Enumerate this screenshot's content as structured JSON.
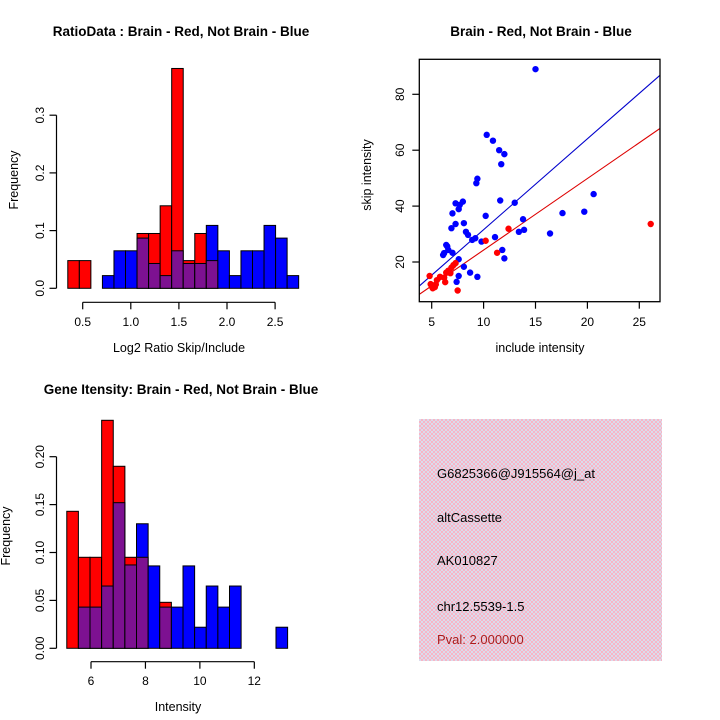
{
  "colors": {
    "brain_red": "#FF0000",
    "not_brain_blue": "#0000FF",
    "overlap_purple": "#7d1191",
    "axis_black": "#000000",
    "pval_text_red": "#a81e1e",
    "info_box_pink": "#f7b6c6",
    "info_box_pink_alt": "#dbdbec",
    "fit_line_blue": "#0000cc",
    "fit_line_red": "#dd0000"
  },
  "chart_data": [
    {
      "id": "ratio_histogram",
      "type": "bar",
      "title": "RatioData : Brain - Red, Not Brain - Blue",
      "xlabel": "Log2 Ratio Skip/Include",
      "ylabel": "Frequency",
      "x_ticks": [
        0.5,
        1.0,
        1.5,
        2.0,
        2.5
      ],
      "x_tick_labels": [
        "0.5",
        "1.0",
        "1.5",
        "2.0",
        "2.5"
      ],
      "y_ticks": [
        0.0,
        0.1,
        0.2,
        0.3
      ],
      "y_tick_labels": [
        "0.0",
        "0.1",
        "0.2",
        "0.3"
      ],
      "xlim": [
        0.34,
        2.75
      ],
      "ylim": [
        0,
        0.381
      ],
      "bin_width": 0.12,
      "series_names": [
        "Brain (red)",
        "Not Brain (blue)",
        "overlap (purple)"
      ],
      "bins": [
        {
          "start": 0.345,
          "red": 0.048,
          "blue": 0
        },
        {
          "start": 0.465,
          "red": 0.048,
          "blue": 0
        },
        {
          "start": 0.705,
          "red": 0,
          "blue": 0.022
        },
        {
          "start": 0.825,
          "red": 0,
          "blue": 0.065
        },
        {
          "start": 0.945,
          "red": 0,
          "blue": 0.065
        },
        {
          "start": 1.065,
          "red": 0.095,
          "blue": 0.087
        },
        {
          "start": 1.185,
          "red": 0.095,
          "blue": 0.043
        },
        {
          "start": 1.305,
          "red": 0.143,
          "blue": 0.022
        },
        {
          "start": 1.425,
          "red": 0.381,
          "blue": 0.065
        },
        {
          "start": 1.545,
          "red": 0.048,
          "blue": 0.043
        },
        {
          "start": 1.665,
          "red": 0.095,
          "blue": 0.043
        },
        {
          "start": 1.785,
          "red": 0.048,
          "blue": 0.109
        },
        {
          "start": 1.905,
          "red": 0,
          "blue": 0.065
        },
        {
          "start": 2.025,
          "red": 0,
          "blue": 0.022
        },
        {
          "start": 2.145,
          "red": 0,
          "blue": 0.065
        },
        {
          "start": 2.265,
          "red": 0,
          "blue": 0.065
        },
        {
          "start": 2.385,
          "red": 0,
          "blue": 0.109
        },
        {
          "start": 2.505,
          "red": 0,
          "blue": 0.087
        },
        {
          "start": 2.625,
          "red": 0,
          "blue": 0.022
        }
      ]
    },
    {
      "id": "intensity_scatter",
      "type": "scatter",
      "title": "Brain - Red, Not Brain - Blue",
      "xlabel": "include intensity",
      "ylabel": "skip intensity",
      "x_ticks": [
        5,
        10,
        15,
        20,
        25
      ],
      "x_tick_labels": [
        "5",
        "10",
        "15",
        "20",
        "25"
      ],
      "y_ticks": [
        20,
        40,
        60,
        80
      ],
      "y_tick_labels": [
        "20",
        "40",
        "60",
        "80"
      ],
      "xlim": [
        3.8,
        27.2
      ],
      "ylim": [
        7.8,
        91.0
      ],
      "series": [
        {
          "name": "Not Brain",
          "color": "#0000FF",
          "points": [
            [
              15.0,
              89.0
            ],
            [
              10.3,
              65.5
            ],
            [
              10.9,
              63.4
            ],
            [
              11.5,
              60.0
            ],
            [
              12.0,
              58.6
            ],
            [
              11.7,
              55.0
            ],
            [
              9.4,
              49.8
            ],
            [
              9.3,
              48.2
            ],
            [
              7.3,
              41.0
            ],
            [
              7.7,
              40.4
            ],
            [
              7.6,
              38.9
            ],
            [
              7.0,
              37.4
            ],
            [
              8.0,
              41.6
            ],
            [
              11.6,
              42.0
            ],
            [
              13.0,
              41.2
            ],
            [
              10.2,
              36.5
            ],
            [
              6.9,
              32.1
            ],
            [
              7.3,
              33.6
            ],
            [
              8.1,
              33.9
            ],
            [
              8.3,
              30.8
            ],
            [
              8.5,
              29.7
            ],
            [
              6.4,
              26.1
            ],
            [
              6.6,
              24.3
            ],
            [
              7.0,
              23.3
            ],
            [
              9.2,
              28.5
            ],
            [
              8.9,
              27.9
            ],
            [
              9.8,
              27.3
            ],
            [
              11.1,
              28.9
            ],
            [
              11.8,
              24.3
            ],
            [
              12.0,
              21.3
            ],
            [
              13.4,
              30.8
            ],
            [
              13.8,
              35.3
            ],
            [
              13.9,
              31.5
            ],
            [
              16.4,
              30.2
            ],
            [
              17.6,
              37.5
            ],
            [
              19.7,
              38.0
            ],
            [
              20.6,
              44.3
            ],
            [
              7.6,
              21.0
            ],
            [
              8.1,
              18.3
            ],
            [
              8.7,
              16.2
            ],
            [
              7.6,
              15.0
            ],
            [
              9.4,
              14.7
            ],
            [
              7.4,
              12.9
            ],
            [
              6.1,
              22.5
            ],
            [
              6.2,
              23.2
            ],
            [
              6.5,
              25.6
            ]
          ]
        },
        {
          "name": "Brain",
          "color": "#FF0000",
          "points": [
            [
              4.8,
              15.0
            ],
            [
              4.9,
              12.1
            ],
            [
              5.0,
              11.3
            ],
            [
              5.1,
              10.6
            ],
            [
              5.3,
              11.0
            ],
            [
              5.4,
              12.0
            ],
            [
              5.5,
              13.5
            ],
            [
              5.8,
              14.7
            ],
            [
              6.2,
              14.4
            ],
            [
              6.3,
              12.8
            ],
            [
              6.4,
              16.2
            ],
            [
              6.6,
              16.9
            ],
            [
              6.8,
              16.0
            ],
            [
              6.9,
              18.0
            ],
            [
              7.1,
              18.9
            ],
            [
              7.3,
              19.6
            ],
            [
              7.5,
              9.8
            ],
            [
              10.2,
              27.6
            ],
            [
              11.3,
              23.3
            ],
            [
              12.4,
              31.9
            ],
            [
              26.1,
              33.6
            ]
          ]
        }
      ],
      "fit_lines": [
        {
          "name": "not-brain-fit",
          "color": "#0000cc",
          "x1": 3.8,
          "y1": 11.4,
          "x2": 27.2,
          "y2": 87.5
        },
        {
          "name": "brain-fit",
          "color": "#dd0000",
          "x1": 3.8,
          "y1": 8.4,
          "x2": 27.2,
          "y2": 68.3
        }
      ]
    },
    {
      "id": "gene_intensity_histogram",
      "type": "bar",
      "title": "Gene Itensity: Brain - Red, Not Brain - Blue",
      "xlabel": "Intensity",
      "ylabel": "Frequency",
      "x_ticks": [
        6,
        8,
        10,
        12
      ],
      "x_tick_labels": [
        "6",
        "8",
        "10",
        "12"
      ],
      "y_ticks": [
        0.0,
        0.05,
        0.1,
        0.15,
        0.2
      ],
      "y_tick_labels": [
        "0.00",
        "0.05",
        "0.10",
        "0.15",
        "0.20"
      ],
      "xlim": [
        5.1,
        13.3
      ],
      "ylim": [
        0,
        0.238
      ],
      "bin_width": 0.427,
      "series_names": [
        "Brain (red)",
        "Not Brain (blue)",
        "overlap (purple)"
      ],
      "bins": [
        {
          "start": 5.11,
          "red": 0.143,
          "blue": 0
        },
        {
          "start": 5.537,
          "red": 0.095,
          "blue": 0.043
        },
        {
          "start": 5.964,
          "red": 0.095,
          "blue": 0.043
        },
        {
          "start": 6.391,
          "red": 0.238,
          "blue": 0.065
        },
        {
          "start": 6.818,
          "red": 0.19,
          "blue": 0.152
        },
        {
          "start": 7.245,
          "red": 0.095,
          "blue": 0.087
        },
        {
          "start": 7.672,
          "red": 0.095,
          "blue": 0.13
        },
        {
          "start": 8.099,
          "red": 0,
          "blue": 0.086
        },
        {
          "start": 8.526,
          "red": 0.048,
          "blue": 0.043
        },
        {
          "start": 8.953,
          "red": 0,
          "blue": 0.043
        },
        {
          "start": 9.38,
          "red": 0,
          "blue": 0.086
        },
        {
          "start": 9.807,
          "red": 0,
          "blue": 0.022
        },
        {
          "start": 10.234,
          "red": 0,
          "blue": 0.065
        },
        {
          "start": 10.661,
          "red": 0,
          "blue": 0.043
        },
        {
          "start": 11.088,
          "red": 0,
          "blue": 0.065
        },
        {
          "start": 12.796,
          "red": 0,
          "blue": 0.022
        }
      ]
    },
    {
      "id": "info_panel",
      "type": "table",
      "lines": [
        "G6825366@J915564@j_at",
        "altCassette",
        "AK010827",
        "chr12.5539-1.5",
        "Pval: 2.000000"
      ]
    }
  ]
}
